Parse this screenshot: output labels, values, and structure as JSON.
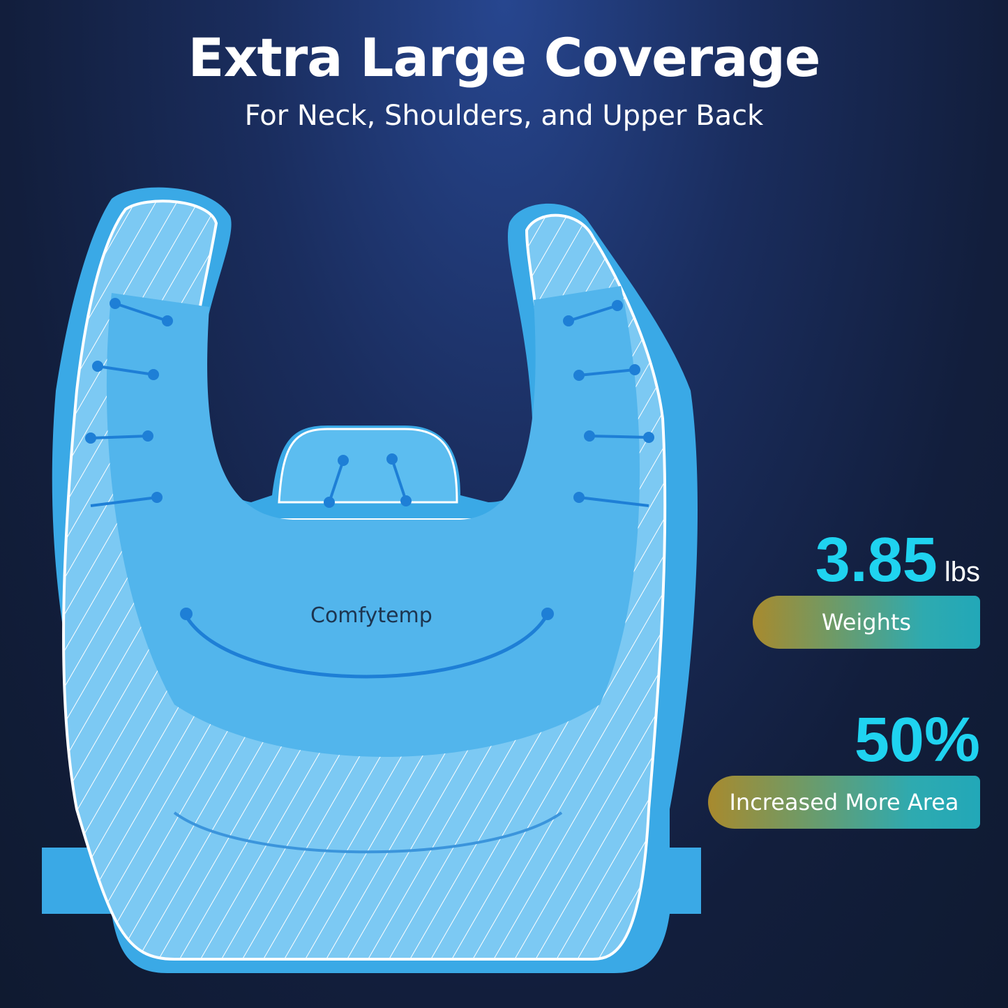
{
  "header": {
    "title": "Extra Large Coverage",
    "subtitle": "For Neck, Shoulders, and Upper Back"
  },
  "product": {
    "brand_logo": "Comfytemp",
    "colors": {
      "pack": "#4fb8ee",
      "pack_light": "#8fd3f7",
      "accent": "#1fd3f0"
    }
  },
  "stats": [
    {
      "value": "3.85",
      "unit": "lbs",
      "label": "Weights"
    },
    {
      "value": "50%",
      "unit": "",
      "label": "Increased More Area"
    }
  ]
}
